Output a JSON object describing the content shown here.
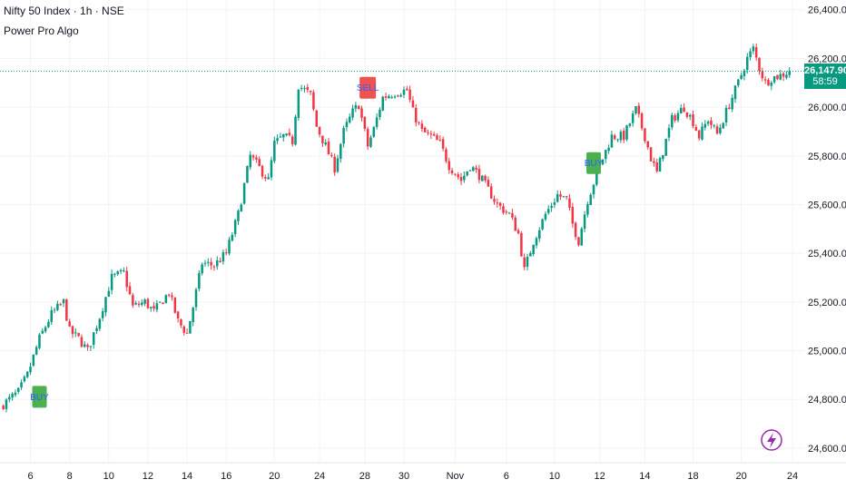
{
  "header": {
    "symbol_line": "Nifty 50 Index · 1h · NSE",
    "indicator_name": "Power Pro Algo"
  },
  "price_label": {
    "price": "26,147.90",
    "countdown": "58:59"
  },
  "colors": {
    "up": "#089981",
    "down": "#f23645",
    "grid": "#f0f3fa",
    "axis_text": "#131722",
    "buy_box": "#4caf50",
    "sell_box": "#ef5350",
    "current_line": "#089981",
    "flash_icon": "#9c27b0"
  },
  "icons": {
    "flash": "lightning-bolt-icon"
  },
  "chart_data": {
    "type": "candlestick",
    "title": "",
    "y_axis": {
      "ticks": [
        24600,
        24800,
        25000,
        25200,
        25400,
        25600,
        25800,
        26000,
        26200,
        26400
      ],
      "tick_labels": [
        "24,600.00",
        "24,800.00",
        "25,000.00",
        "25,200.00",
        "25,400.00",
        "25,600.00",
        "25,800.00",
        "26,000.00",
        "26,200.00",
        "26,400.00"
      ],
      "range": [
        24540,
        26440
      ],
      "side": "right"
    },
    "x_axis": {
      "tick_labels": [
        "6",
        "8",
        "10",
        "12",
        "14",
        "16",
        "20",
        "24",
        "28",
        "30",
        "Nov",
        "6",
        "10",
        "12",
        "14",
        "18",
        "20",
        "24"
      ],
      "tick_bar_index": [
        9,
        22,
        35,
        48,
        61,
        74,
        90,
        105,
        120,
        133,
        150,
        167,
        183,
        198,
        213,
        229,
        245,
        262
      ]
    },
    "current_price": 26147.9,
    "grid": true,
    "bars_total": 264,
    "keypoints": [
      [
        0,
        24780
      ],
      [
        5,
        24830
      ],
      [
        8,
        24900
      ],
      [
        12,
        25050
      ],
      [
        16,
        25150
      ],
      [
        20,
        25200
      ],
      [
        22,
        25080
      ],
      [
        25,
        25050
      ],
      [
        28,
        25000
      ],
      [
        32,
        25140
      ],
      [
        36,
        25300
      ],
      [
        40,
        25320
      ],
      [
        43,
        25180
      ],
      [
        47,
        25200
      ],
      [
        50,
        25160
      ],
      [
        55,
        25240
      ],
      [
        58,
        25120
      ],
      [
        61,
        25070
      ],
      [
        63,
        25180
      ],
      [
        66,
        25360
      ],
      [
        70,
        25350
      ],
      [
        74,
        25400
      ],
      [
        78,
        25560
      ],
      [
        82,
        25800
      ],
      [
        85,
        25750
      ],
      [
        88,
        25700
      ],
      [
        90,
        25850
      ],
      [
        93,
        25880
      ],
      [
        96,
        25860
      ],
      [
        98,
        26090
      ],
      [
        102,
        26050
      ],
      [
        104,
        25920
      ],
      [
        107,
        25840
      ],
      [
        110,
        25750
      ],
      [
        113,
        25900
      ],
      [
        116,
        25980
      ],
      [
        118,
        26010
      ],
      [
        121,
        25840
      ],
      [
        123,
        25910
      ],
      [
        126,
        26040
      ],
      [
        130,
        26060
      ],
      [
        134,
        26070
      ],
      [
        136,
        25980
      ],
      [
        139,
        25900
      ],
      [
        142,
        25880
      ],
      [
        145,
        25850
      ],
      [
        148,
        25760
      ],
      [
        152,
        25700
      ],
      [
        155,
        25760
      ],
      [
        158,
        25720
      ],
      [
        161,
        25660
      ],
      [
        164,
        25600
      ],
      [
        168,
        25560
      ],
      [
        171,
        25480
      ],
      [
        173,
        25330
      ],
      [
        176,
        25450
      ],
      [
        180,
        25560
      ],
      [
        184,
        25640
      ],
      [
        187,
        25620
      ],
      [
        189,
        25520
      ],
      [
        191,
        25450
      ],
      [
        194,
        25620
      ],
      [
        198,
        25760
      ],
      [
        202,
        25880
      ],
      [
        206,
        25880
      ],
      [
        210,
        25990
      ],
      [
        213,
        25880
      ],
      [
        215,
        25790
      ],
      [
        217,
        25730
      ],
      [
        219,
        25820
      ],
      [
        222,
        25950
      ],
      [
        226,
        26000
      ],
      [
        229,
        25940
      ],
      [
        231,
        25880
      ],
      [
        234,
        25950
      ],
      [
        237,
        25890
      ],
      [
        240,
        25980
      ],
      [
        244,
        26100
      ],
      [
        247,
        26200
      ],
      [
        249,
        26240
      ],
      [
        251,
        26160
      ],
      [
        253,
        26100
      ],
      [
        255,
        26120
      ],
      [
        258,
        26130
      ],
      [
        261,
        26148
      ]
    ],
    "signals": [
      {
        "type": "buy",
        "label": "BUY",
        "bar": 12,
        "price": 24870,
        "placement": "below"
      },
      {
        "type": "sell",
        "label": "SELL",
        "bar": 121,
        "price": 26020,
        "placement": "above"
      },
      {
        "type": "buy",
        "label": "BUY",
        "bar": 196,
        "price": 25830,
        "placement": "below"
      }
    ]
  }
}
